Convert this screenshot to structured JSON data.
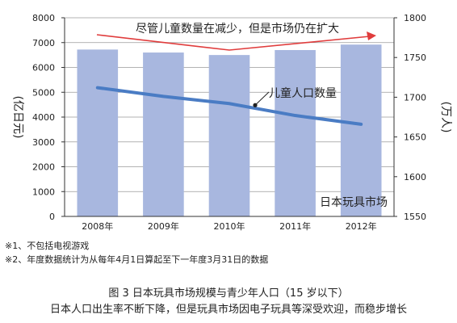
{
  "chart_data": {
    "type": "bar",
    "categories": [
      "2008年",
      "2009年",
      "2010年",
      "2011年",
      "2012年"
    ],
    "series": [
      {
        "name": "日本玩具市场",
        "axis": "left",
        "type": "bar",
        "values": [
          6720,
          6600,
          6500,
          6700,
          6920
        ],
        "color": "#a8b7df"
      },
      {
        "name": "儿童人口数量",
        "axis": "right",
        "type": "line",
        "values": [
          1712,
          1701,
          1692,
          1677,
          1666
        ],
        "color": "#4a7cc4"
      }
    ],
    "ylabel_left": "(亿日元)",
    "ylabel_right": "(万人)",
    "ylim_left": [
      0,
      8000
    ],
    "yticks_left": [
      0,
      1000,
      2000,
      3000,
      4000,
      5000,
      6000,
      7000,
      8000
    ],
    "ylim_right": [
      1550,
      1800
    ],
    "yticks_right": [
      1550,
      1600,
      1650,
      1700,
      1750,
      1800
    ],
    "grid": true,
    "annotations": {
      "trend": "尽管儿童数量在减少，但是市场仍在扩大",
      "line_label": "儿童人口数量",
      "bar_label": "日本玩具市场"
    },
    "accent_color": "#e03c3c"
  },
  "notes": [
    "※1、不包括电视游戏",
    "※2、年度数据统计为从每年4月1日算起至下一年度3月31日的数据"
  ],
  "caption": {
    "title": "图 3  日本玩具市场规模与青少年人口（15 岁以下）",
    "subtitle": "日本人口出生率不断下降，但是玩具市场因电子玩具等深受欢迎，而稳步增长"
  }
}
